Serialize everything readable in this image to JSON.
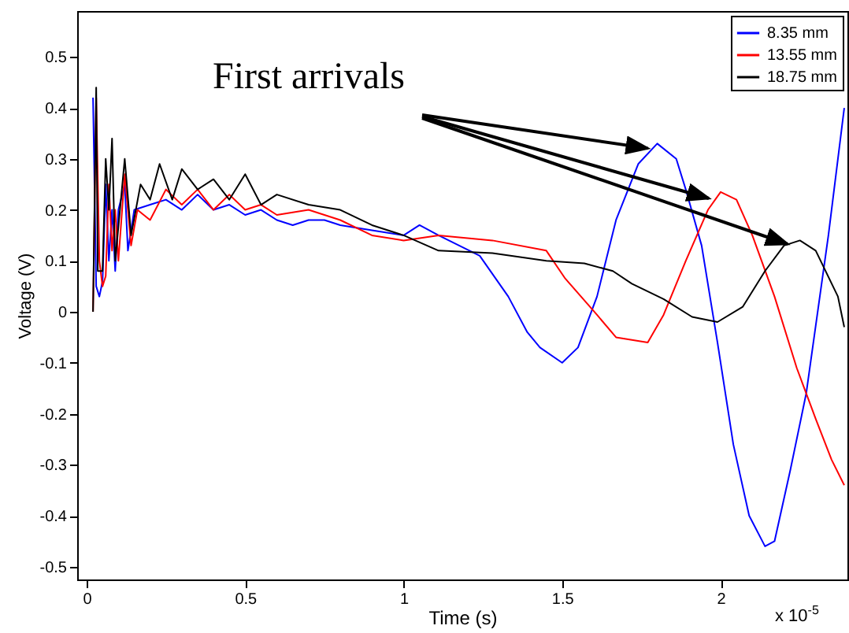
{
  "chart_data": {
    "type": "line",
    "xlabel": "Time (s)",
    "ylabel": "Voltage (V)",
    "xlim": [
      -0.03,
      2.4
    ],
    "ylim": [
      -0.525,
      0.59
    ],
    "xticks": [
      0,
      0.5,
      1,
      1.5,
      2
    ],
    "yticks": [
      -0.5,
      -0.4,
      -0.3,
      -0.2,
      -0.1,
      0,
      0.1,
      0.2,
      0.3,
      0.4,
      0.5
    ],
    "grid": false,
    "legend": "top right",
    "line_style": "solid",
    "marker": "none",
    "annotations": [
      {
        "text": "First arrivals",
        "x": 1.8,
        "y": 0.33
      },
      "x 10$^{-5}$"
    ],
    "series": [
      {
        "name": "8.35 mm",
        "color": "#0000ff",
        "x": [
          0.02,
          0.03,
          0.04,
          0.05,
          0.06,
          0.07,
          0.08,
          0.09,
          0.1,
          0.12,
          0.13,
          0.15,
          0.2,
          0.25,
          0.3,
          0.35,
          0.4,
          0.45,
          0.5,
          0.55,
          0.6,
          0.65,
          0.7,
          0.75,
          0.8,
          0.9,
          1.0,
          1.05,
          1.11,
          1.24,
          1.33,
          1.39,
          1.43,
          1.5,
          1.55,
          1.61,
          1.67,
          1.74,
          1.8,
          1.86,
          1.89,
          1.94,
          1.99,
          2.04,
          2.09,
          2.14,
          2.17,
          2.22,
          2.27,
          2.34,
          2.39
        ],
        "values": [
          0.42,
          0.05,
          0.03,
          0.06,
          0.25,
          0.1,
          0.2,
          0.08,
          0.2,
          0.25,
          0.12,
          0.2,
          0.21,
          0.22,
          0.2,
          0.23,
          0.2,
          0.21,
          0.19,
          0.2,
          0.18,
          0.17,
          0.18,
          0.18,
          0.17,
          0.16,
          0.15,
          0.17,
          0.15,
          0.11,
          0.03,
          -0.04,
          -0.07,
          -0.1,
          -0.07,
          0.03,
          0.18,
          0.29,
          0.33,
          0.3,
          0.24,
          0.13,
          -0.06,
          -0.26,
          -0.4,
          -0.46,
          -0.45,
          -0.31,
          -0.16,
          0.15,
          0.4
        ]
      },
      {
        "name": "13.55 mm",
        "color": "#ff0000",
        "x": [
          0.02,
          0.03,
          0.04,
          0.05,
          0.06,
          0.07,
          0.08,
          0.09,
          0.1,
          0.12,
          0.14,
          0.16,
          0.2,
          0.25,
          0.3,
          0.35,
          0.4,
          0.45,
          0.5,
          0.55,
          0.6,
          0.7,
          0.8,
          0.9,
          1.0,
          1.11,
          1.28,
          1.45,
          1.51,
          1.61,
          1.67,
          1.77,
          1.82,
          1.89,
          1.96,
          2.0,
          2.05,
          2.1,
          2.17,
          2.24,
          2.3,
          2.35,
          2.39
        ],
        "values": [
          0.0,
          0.42,
          0.1,
          0.05,
          0.07,
          0.25,
          0.12,
          0.2,
          0.1,
          0.27,
          0.13,
          0.2,
          0.18,
          0.24,
          0.21,
          0.24,
          0.2,
          0.23,
          0.2,
          0.21,
          0.19,
          0.2,
          0.18,
          0.15,
          0.14,
          0.15,
          0.14,
          0.12,
          0.065,
          -0.006,
          -0.05,
          -0.06,
          -0.006,
          0.1,
          0.2,
          0.235,
          0.22,
          0.15,
          0.03,
          -0.11,
          -0.21,
          -0.29,
          -0.34
        ]
      },
      {
        "name": "18.75 mm",
        "color": "#000000",
        "x": [
          0.02,
          0.03,
          0.035,
          0.05,
          0.06,
          0.07,
          0.08,
          0.09,
          0.12,
          0.14,
          0.17,
          0.2,
          0.23,
          0.27,
          0.3,
          0.35,
          0.4,
          0.45,
          0.5,
          0.55,
          0.6,
          0.7,
          0.8,
          0.9,
          1.0,
          1.11,
          1.28,
          1.45,
          1.57,
          1.66,
          1.72,
          1.82,
          1.91,
          1.99,
          2.07,
          2.14,
          2.2,
          2.25,
          2.3,
          2.37,
          2.39
        ],
        "values": [
          0.0,
          0.44,
          0.08,
          0.08,
          0.3,
          0.2,
          0.34,
          0.1,
          0.3,
          0.15,
          0.25,
          0.22,
          0.29,
          0.22,
          0.28,
          0.24,
          0.26,
          0.22,
          0.27,
          0.21,
          0.23,
          0.21,
          0.2,
          0.17,
          0.15,
          0.12,
          0.115,
          0.1,
          0.095,
          0.08,
          0.055,
          0.025,
          -0.01,
          -0.02,
          0.01,
          0.08,
          0.13,
          0.14,
          0.12,
          0.03,
          -0.03
        ]
      }
    ]
  }
}
